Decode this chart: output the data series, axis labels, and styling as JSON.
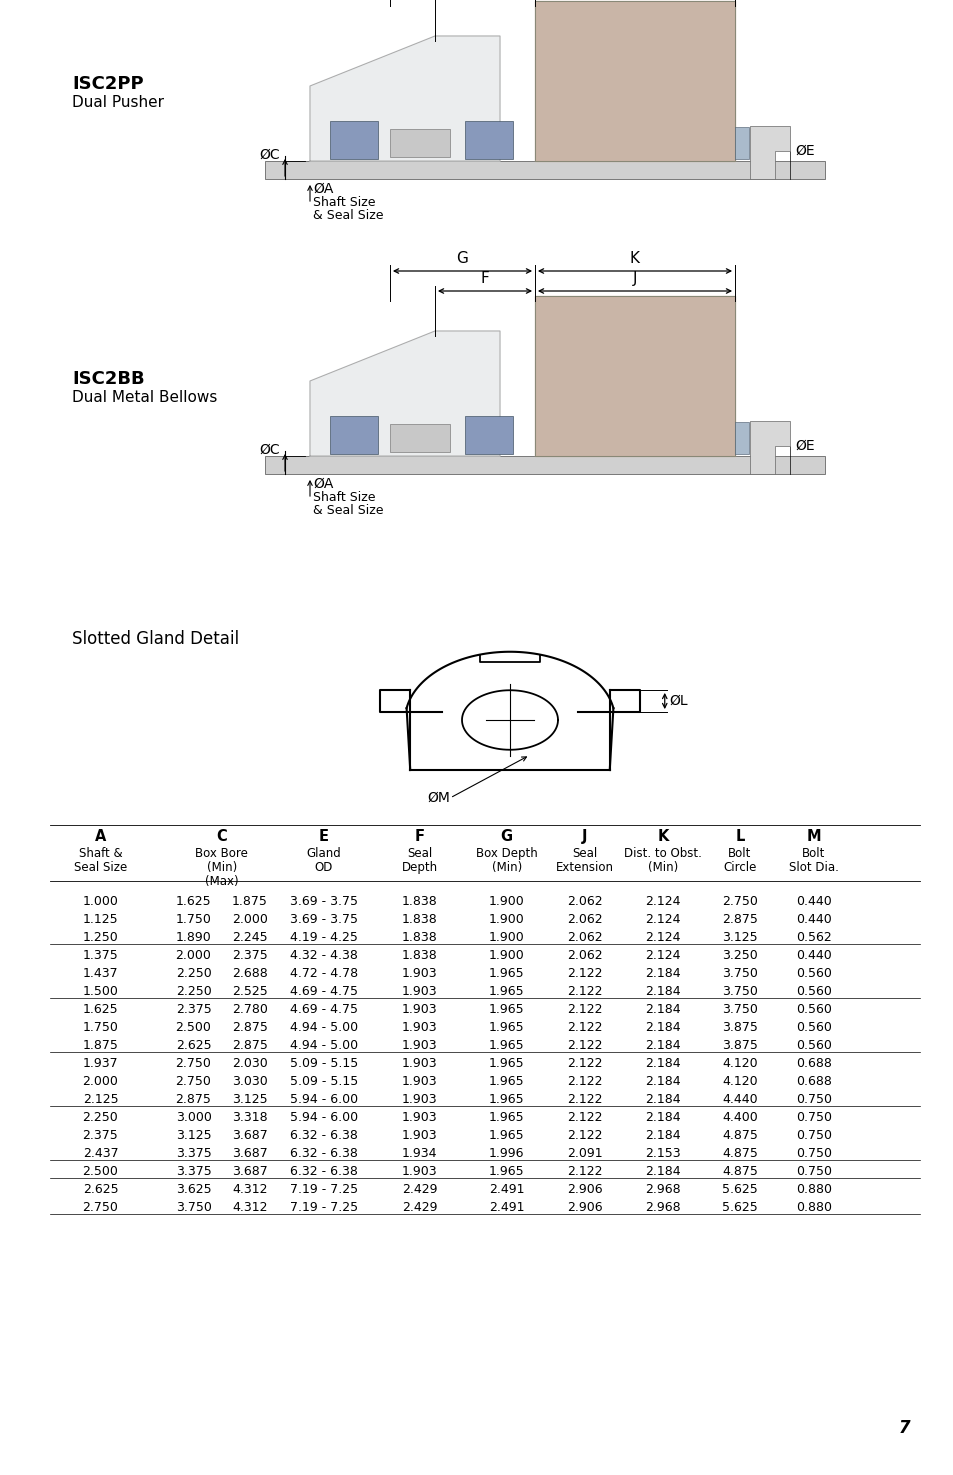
{
  "page_bg": "#ffffff",
  "title1": "ISC2PP",
  "subtitle1": "Dual Pusher",
  "title2": "ISC2BB",
  "subtitle2": "Dual Metal Bellows",
  "slotted_title": "Slotted Gland Detail",
  "page_number": "7",
  "table_data": [
    [
      "1.000",
      "1.625",
      "1.875",
      "3.69 - 3.75",
      "1.838",
      "1.900",
      "2.062",
      "2.124",
      "2.750",
      "0.440"
    ],
    [
      "1.125",
      "1.750",
      "2.000",
      "3.69 - 3.75",
      "1.838",
      "1.900",
      "2.062",
      "2.124",
      "2.875",
      "0.440"
    ],
    [
      "1.250",
      "1.890",
      "2.245",
      "4.19 - 4.25",
      "1.838",
      "1.900",
      "2.062",
      "2.124",
      "3.125",
      "0.562"
    ],
    [
      "1.375",
      "2.000",
      "2.375",
      "4.32 - 4.38",
      "1.838",
      "1.900",
      "2.062",
      "2.124",
      "3.250",
      "0.440"
    ],
    [
      "1.437",
      "2.250",
      "2.688",
      "4.72 - 4.78",
      "1.903",
      "1.965",
      "2.122",
      "2.184",
      "3.750",
      "0.560"
    ],
    [
      "1.500",
      "2.250",
      "2.525",
      "4.69 - 4.75",
      "1.903",
      "1.965",
      "2.122",
      "2.184",
      "3.750",
      "0.560"
    ],
    [
      "1.625",
      "2.375",
      "2.780",
      "4.69 - 4.75",
      "1.903",
      "1.965",
      "2.122",
      "2.184",
      "3.750",
      "0.560"
    ],
    [
      "1.750",
      "2.500",
      "2.875",
      "4.94 - 5.00",
      "1.903",
      "1.965",
      "2.122",
      "2.184",
      "3.875",
      "0.560"
    ],
    [
      "1.875",
      "2.625",
      "2.875",
      "4.94 - 5.00",
      "1.903",
      "1.965",
      "2.122",
      "2.184",
      "3.875",
      "0.560"
    ],
    [
      "1.937",
      "2.750",
      "2.030",
      "5.09 - 5.15",
      "1.903",
      "1.965",
      "2.122",
      "2.184",
      "4.120",
      "0.688"
    ],
    [
      "2.000",
      "2.750",
      "3.030",
      "5.09 - 5.15",
      "1.903",
      "1.965",
      "2.122",
      "2.184",
      "4.120",
      "0.688"
    ],
    [
      "2.125",
      "2.875",
      "3.125",
      "5.94 - 6.00",
      "1.903",
      "1.965",
      "2.122",
      "2.184",
      "4.440",
      "0.750"
    ],
    [
      "2.250",
      "3.000",
      "3.318",
      "5.94 - 6.00",
      "1.903",
      "1.965",
      "2.122",
      "2.184",
      "4.400",
      "0.750"
    ],
    [
      "2.375",
      "3.125",
      "3.687",
      "6.32 - 6.38",
      "1.903",
      "1.965",
      "2.122",
      "2.184",
      "4.875",
      "0.750"
    ],
    [
      "2.437",
      "3.375",
      "3.687",
      "6.32 - 6.38",
      "1.934",
      "1.996",
      "2.091",
      "2.153",
      "4.875",
      "0.750"
    ],
    [
      "2.500",
      "3.375",
      "3.687",
      "6.32 - 6.38",
      "1.903",
      "1.965",
      "2.122",
      "2.184",
      "4.875",
      "0.750"
    ],
    [
      "2.625",
      "3.625",
      "4.312",
      "7.19 - 7.25",
      "2.429",
      "2.491",
      "2.906",
      "2.968",
      "5.625",
      "0.880"
    ],
    [
      "2.750",
      "3.750",
      "4.312",
      "7.19 - 7.25",
      "2.429",
      "2.491",
      "2.906",
      "2.968",
      "5.625",
      "0.880"
    ]
  ],
  "separator_after": [
    2,
    5,
    8,
    11,
    14,
    15
  ],
  "diagram_colors": {
    "shaft_bar": "#d0d0d0",
    "shaft_edge": "#666666",
    "left_wedge_fill": "#e8eaec",
    "left_wedge_edge": "#aaaaaa",
    "right_block_fill": "#c0a898",
    "right_block_edge": "#888877",
    "blue_fill": "#8899bb",
    "blue_edge": "#445566",
    "inner_gray": "#c8c8c8",
    "right_small_fill": "#d8d8d8",
    "dim_line": "#000000"
  }
}
